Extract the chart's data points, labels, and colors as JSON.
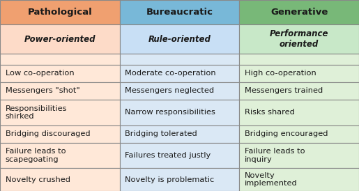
{
  "headers": [
    "Pathological",
    "Bureaucratic",
    "Generative"
  ],
  "subheaders": [
    "Power-oriented",
    "Rule-oriented",
    "Performance\noriented"
  ],
  "rows": [
    [
      "Low co-operation",
      "Moderate co-operation",
      "High co-operation"
    ],
    [
      "Messengers \"shot\"",
      "Messengers neglected",
      "Messengers trained"
    ],
    [
      "Responsibilities\nshirked",
      "Narrow responsibilities",
      "Risks shared"
    ],
    [
      "Bridging discouraged",
      "Bridging tolerated",
      "Bridging encouraged"
    ],
    [
      "Failure leads to\nscapegoating",
      "Failures treated justly",
      "Failure leads to\ninquiry"
    ],
    [
      "Novelty crushed",
      "Novelty is problematic",
      "Novelty\nimplemented"
    ]
  ],
  "header_bg": [
    "#F0A070",
    "#78B8D8",
    "#78B878"
  ],
  "subheader_bg": [
    "#FDDBC8",
    "#C8DFF5",
    "#C8E8C8"
  ],
  "col_colors": [
    "#FFE8D8",
    "#DAE8F5",
    "#DFF0D8"
  ],
  "border_color": "#888888",
  "text_color": "#1a1a1a",
  "fig_width": 5.15,
  "fig_height": 2.74,
  "dpi": 100
}
